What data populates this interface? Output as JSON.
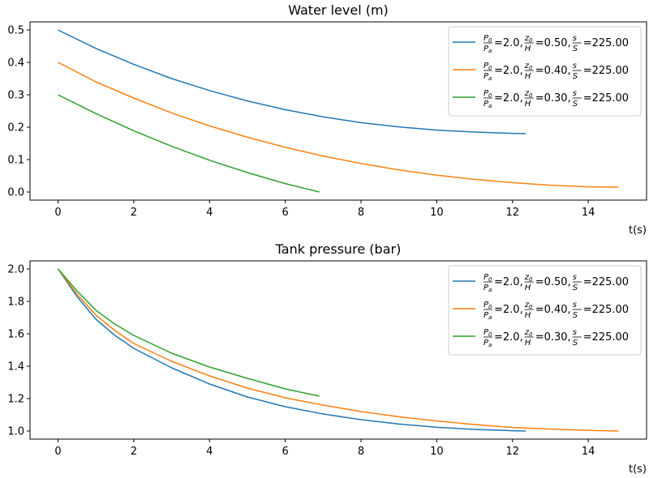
{
  "chart_data": [
    {
      "type": "line",
      "title": "Water level (m)",
      "xlabel": "t(s)",
      "ylabel": "",
      "xlim": [
        -0.74,
        15.54
      ],
      "ylim": [
        -0.025,
        0.525
      ],
      "xticks": [
        0,
        2,
        4,
        6,
        8,
        10,
        12,
        14
      ],
      "yticks": [
        0.0,
        0.1,
        0.2,
        0.3,
        0.4,
        0.5
      ],
      "ytick_labels": [
        "0.0",
        "0.1",
        "0.2",
        "0.3",
        "0.4",
        "0.5"
      ],
      "grid": false,
      "legend_position": "top-right",
      "series": [
        {
          "legend": {
            "p_ratio": "2.0",
            "z_ratio": "0.50",
            "s_ratio": "225.00"
          },
          "color": "#1f77b4",
          "x": [
            0,
            1,
            2,
            3,
            4,
            5,
            6,
            7,
            8,
            9,
            10,
            11,
            12,
            12.35
          ],
          "y": [
            0.5,
            0.443,
            0.394,
            0.35,
            0.313,
            0.281,
            0.254,
            0.232,
            0.214,
            0.201,
            0.191,
            0.185,
            0.181,
            0.18
          ]
        },
        {
          "legend": {
            "p_ratio": "2.0",
            "z_ratio": "0.40",
            "s_ratio": "225.00"
          },
          "color": "#ff7f0e",
          "x": [
            0,
            1,
            2,
            3,
            4,
            5,
            6,
            7,
            8,
            9,
            10,
            11,
            12,
            13,
            14,
            14.8
          ],
          "y": [
            0.4,
            0.34,
            0.29,
            0.244,
            0.204,
            0.169,
            0.138,
            0.111,
            0.088,
            0.068,
            0.052,
            0.039,
            0.029,
            0.021,
            0.016,
            0.015
          ]
        },
        {
          "legend": {
            "p_ratio": "2.0",
            "z_ratio": "0.30",
            "s_ratio": "225.00"
          },
          "color": "#2ca02c",
          "x": [
            0,
            1,
            2,
            3,
            4,
            5,
            6,
            6.9
          ],
          "y": [
            0.3,
            0.242,
            0.189,
            0.141,
            0.098,
            0.06,
            0.026,
            0.0
          ]
        }
      ]
    },
    {
      "type": "line",
      "title": "Tank pressure (bar)",
      "xlabel": "t(s)",
      "ylabel": "",
      "xlim": [
        -0.74,
        15.54
      ],
      "ylim": [
        0.95,
        2.05
      ],
      "xticks": [
        0,
        2,
        4,
        6,
        8,
        10,
        12,
        14
      ],
      "yticks": [
        1.0,
        1.2,
        1.4,
        1.6,
        1.8,
        2.0
      ],
      "ytick_labels": [
        "1.0",
        "1.2",
        "1.4",
        "1.6",
        "1.8",
        "2.0"
      ],
      "grid": false,
      "legend_position": "top-right",
      "series": [
        {
          "legend": {
            "p_ratio": "2.0",
            "z_ratio": "0.50",
            "s_ratio": "225.00"
          },
          "color": "#1f77b4",
          "x": [
            0,
            0.5,
            1,
            1.5,
            2,
            3,
            4,
            5,
            6,
            7,
            8,
            9,
            10,
            11,
            12,
            12.35
          ],
          "y": [
            2.0,
            1.83,
            1.69,
            1.59,
            1.51,
            1.39,
            1.29,
            1.21,
            1.15,
            1.105,
            1.07,
            1.043,
            1.023,
            1.01,
            1.002,
            1.0
          ]
        },
        {
          "legend": {
            "p_ratio": "2.0",
            "z_ratio": "0.40",
            "s_ratio": "225.00"
          },
          "color": "#ff7f0e",
          "x": [
            0,
            0.5,
            1,
            1.5,
            2,
            3,
            4,
            5,
            6,
            7,
            8,
            9,
            10,
            11,
            12,
            13,
            14,
            14.8
          ],
          "y": [
            2.0,
            1.845,
            1.715,
            1.62,
            1.54,
            1.43,
            1.34,
            1.265,
            1.205,
            1.16,
            1.12,
            1.088,
            1.062,
            1.04,
            1.022,
            1.012,
            1.004,
            1.0
          ]
        },
        {
          "legend": {
            "p_ratio": "2.0",
            "z_ratio": "0.30",
            "s_ratio": "225.00"
          },
          "color": "#2ca02c",
          "x": [
            0,
            0.5,
            1,
            1.5,
            2,
            3,
            4,
            5,
            6,
            6.9
          ],
          "y": [
            2.0,
            1.865,
            1.745,
            1.66,
            1.59,
            1.48,
            1.395,
            1.325,
            1.26,
            1.215
          ]
        }
      ]
    }
  ]
}
